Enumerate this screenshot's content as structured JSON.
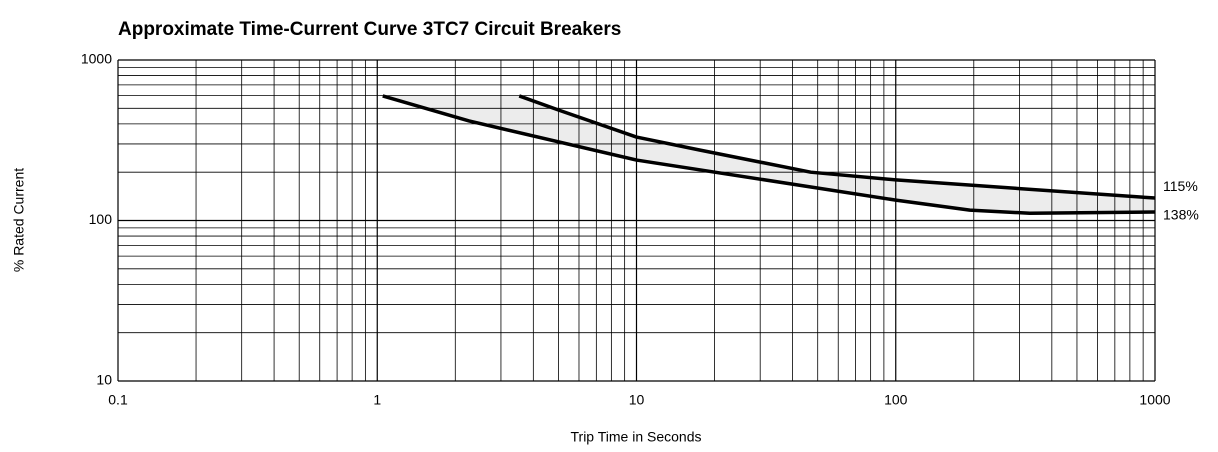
{
  "chart_data": {
    "type": "line",
    "title": "Approximate Time-Current Curve 3TC7 Circuit Breakers",
    "x_label": "Trip Time in Seconds",
    "y_label": "% Rated Current",
    "x_log": true,
    "y_log": true,
    "grid": "minor",
    "fill_between": true,
    "xlim": [
      0.1,
      1000
    ],
    "ylim": [
      10,
      1000
    ],
    "xticks": [
      0.1,
      1,
      10,
      100,
      1000
    ],
    "yticks": [
      10,
      100,
      1000
    ],
    "series": [
      {
        "name": "115%",
        "color": "#000000",
        "x": [
          3.53,
          5.0,
          10,
          17.5,
          47,
          100,
          1000
        ],
        "values": [
          597,
          488,
          331,
          275,
          200,
          179,
          138
        ]
      },
      {
        "name": "138%",
        "color": "#000000",
        "x": [
          1.05,
          2.26,
          10,
          100,
          193,
          329,
          1000
        ],
        "values": [
          597,
          417,
          238,
          134,
          116,
          111,
          113
        ]
      }
    ]
  }
}
